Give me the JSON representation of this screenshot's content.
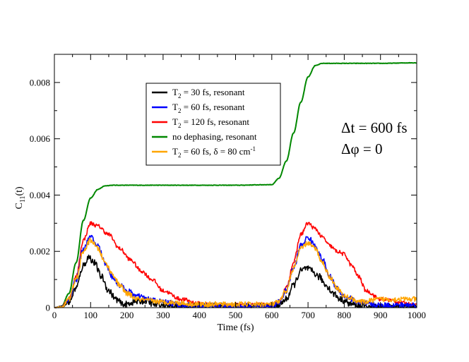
{
  "chart_data": {
    "type": "line",
    "title": "",
    "xlabel": "Time (fs)",
    "ylabel_main": "C",
    "ylabel_sub": "11",
    "ylabel_suffix": "(t)",
    "xlim": [
      0,
      1000
    ],
    "ylim": [
      0,
      0.009
    ],
    "x_ticks": [
      0,
      100,
      200,
      300,
      400,
      500,
      600,
      700,
      800,
      900,
      1000
    ],
    "x_tick_labels": [
      "0",
      "100",
      "200",
      "300",
      "400",
      "500",
      "600",
      "700",
      "800",
      "900",
      "1000"
    ],
    "y_ticks": [
      0,
      0.002,
      0.004,
      0.006,
      0.008
    ],
    "y_tick_labels": [
      "0",
      "0.002",
      "0.004",
      "0.006",
      "0.008"
    ],
    "grid": false,
    "legend_position": "upper-center",
    "annotations": [
      "Δt = 600 fs",
      "Δφ = 0"
    ],
    "series": [
      {
        "name": "T2 = 30 fs, resonant",
        "label_parts": [
          "T",
          "2",
          " = 30 fs, resonant",
          ""
        ],
        "color": "#000000",
        "noise": 0.00012,
        "x": [
          0,
          20,
          40,
          60,
          80,
          95,
          110,
          130,
          150,
          170,
          190,
          220,
          250,
          280,
          320,
          600,
          620,
          640,
          660,
          680,
          695,
          710,
          730,
          750,
          770,
          790,
          820,
          850,
          900,
          1000
        ],
        "y": [
          0,
          2e-05,
          0.0002,
          0.0007,
          0.0015,
          0.0018,
          0.0016,
          0.0011,
          0.0006,
          0.0003,
          0.0001,
          0.0002,
          0.00025,
          0.0001,
          5e-05,
          5e-05,
          0.0001,
          0.0003,
          0.0008,
          0.0013,
          0.0014,
          0.0013,
          0.0011,
          0.0008,
          0.0005,
          0.0003,
          0.00012,
          5e-05,
          2e-05,
          0.0
        ]
      },
      {
        "name": "T2 = 60 fs, resonant",
        "label_parts": [
          "T",
          "2",
          " = 60 fs, resonant",
          ""
        ],
        "color": "#0000ff",
        "noise": 0.0001,
        "x": [
          0,
          20,
          40,
          60,
          80,
          100,
          120,
          140,
          160,
          180,
          200,
          230,
          260,
          300,
          350,
          400,
          600,
          620,
          640,
          660,
          680,
          700,
          720,
          740,
          760,
          780,
          800,
          850,
          900,
          1000
        ],
        "y": [
          0,
          3e-05,
          0.0003,
          0.001,
          0.0021,
          0.0025,
          0.0022,
          0.0016,
          0.0011,
          0.0008,
          0.0006,
          0.0004,
          0.0003,
          0.0002,
          0.0001,
          6e-05,
          6e-05,
          0.0002,
          0.0006,
          0.0014,
          0.0022,
          0.0025,
          0.0022,
          0.0017,
          0.0011,
          0.0007,
          0.0004,
          0.00015,
          8e-05,
          0.0001
        ]
      },
      {
        "name": "T2 = 120 fs, resonant",
        "label_parts": [
          "T",
          "2",
          " = 120 fs, resonant",
          ""
        ],
        "color": "#ff0000",
        "noise": 7e-05,
        "x": [
          0,
          20,
          40,
          60,
          80,
          100,
          120,
          150,
          180,
          210,
          240,
          270,
          300,
          350,
          400,
          450,
          500,
          600,
          620,
          640,
          660,
          680,
          700,
          720,
          740,
          760,
          780,
          800,
          820,
          840,
          860,
          900,
          1000
        ],
        "y": [
          0,
          3e-05,
          0.0003,
          0.0011,
          0.0024,
          0.003,
          0.0029,
          0.0026,
          0.0021,
          0.0017,
          0.0013,
          0.001,
          0.0006,
          0.0003,
          0.00015,
          0.0001,
          0.0001,
          0.0001,
          0.0002,
          0.0007,
          0.0016,
          0.0026,
          0.003,
          0.0028,
          0.0025,
          0.0022,
          0.002,
          0.0019,
          0.0015,
          0.0011,
          0.0006,
          0.0003,
          0.0001
        ]
      },
      {
        "name": "no dephasing, resonant",
        "label_parts": [
          "no dephasing, resonant",
          "",
          "",
          ""
        ],
        "color": "#008800",
        "noise": 8e-06,
        "x": [
          0,
          20,
          40,
          60,
          80,
          100,
          120,
          140,
          160,
          180,
          200,
          300,
          400,
          500,
          600,
          620,
          640,
          660,
          680,
          700,
          720,
          740,
          760,
          800,
          900,
          1000
        ],
        "y": [
          0,
          5e-05,
          0.0005,
          0.0016,
          0.0031,
          0.0039,
          0.0042,
          0.00433,
          0.00435,
          0.00435,
          0.00435,
          0.00435,
          0.00435,
          0.00435,
          0.00437,
          0.0046,
          0.0052,
          0.0062,
          0.0073,
          0.0082,
          0.0086,
          0.00868,
          0.00868,
          0.00868,
          0.00868,
          0.0087
        ]
      },
      {
        "name": "T2 = 60 fs, δ = 80 cm-1",
        "label_parts": [
          "T",
          "2",
          " = 60 fs, δ = 80 cm",
          "-1"
        ],
        "color": "#ffa500",
        "noise": 9e-05,
        "x": [
          0,
          20,
          40,
          60,
          80,
          100,
          120,
          140,
          160,
          180,
          200,
          230,
          260,
          300,
          400,
          600,
          620,
          640,
          660,
          680,
          700,
          720,
          740,
          760,
          780,
          800,
          850,
          900,
          1000
        ],
        "y": [
          0,
          3e-05,
          0.0003,
          0.001,
          0.002,
          0.0024,
          0.0021,
          0.0016,
          0.0012,
          0.0008,
          0.0005,
          0.0003,
          0.00025,
          0.0002,
          0.00012,
          0.00012,
          0.0002,
          0.0006,
          0.0014,
          0.0021,
          0.0023,
          0.0021,
          0.0016,
          0.0011,
          0.0007,
          0.0004,
          0.0002,
          0.0003,
          0.0003
        ]
      }
    ]
  }
}
